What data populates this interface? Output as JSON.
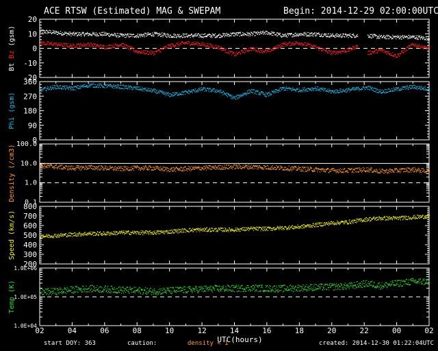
{
  "header": {
    "title": "ACE RTSW (Estimated) MAG & SWEPAM",
    "begin": "Begin: 2014-12-29 02:00:00UTC"
  },
  "footer": {
    "start_doy": "start DOY: 363",
    "caution": "caution:",
    "density_note": "density < 1",
    "created": "created: 2014-12-30 01:22:04UTC"
  },
  "colors": {
    "bt": "#ffffff",
    "bz": "#ff2020",
    "phi": "#20b8e8",
    "density": "#ff9a30",
    "speed": "#f0f020",
    "temp": "#30e030",
    "axes": "#ffffff",
    "background": "#000000"
  },
  "chart_data": [
    {
      "type": "scatter",
      "panel": "mag",
      "ylabel_parts": [
        "Bt",
        "Bz",
        "(gsm)"
      ],
      "ylim": [
        -20,
        20
      ],
      "yticks": [
        -20,
        -10,
        0,
        10,
        20
      ],
      "dashed_ref": 0,
      "series": [
        {
          "name": "Bt",
          "color": "#ffffff",
          "x": [
            2,
            3,
            4,
            5,
            6,
            7,
            8,
            9,
            10,
            11,
            12,
            13,
            14,
            15,
            16,
            17,
            18,
            19,
            20,
            21,
            21.6,
            22.2,
            23,
            24,
            25,
            26,
            26.6
          ],
          "y": [
            12,
            11,
            10,
            10,
            10,
            9,
            9,
            10,
            9,
            9,
            9,
            9,
            10,
            10,
            11,
            9,
            10,
            10,
            9,
            9,
            9,
            9,
            8,
            8,
            8,
            7,
            6
          ]
        },
        {
          "name": "Bz",
          "color": "#ff2020",
          "x": [
            2,
            3,
            4,
            5,
            6,
            7,
            8,
            9,
            10,
            11,
            12,
            13,
            14,
            15,
            16,
            17,
            18,
            19,
            20,
            21,
            21.6,
            22.2,
            23,
            24,
            25,
            26,
            26.6
          ],
          "y": [
            4,
            3,
            2,
            3,
            1,
            3,
            -2,
            -3,
            2,
            4,
            3,
            1,
            -4,
            0,
            -2,
            3,
            4,
            1,
            -3,
            -1,
            2,
            -3,
            -1,
            -5,
            3,
            0,
            4
          ]
        }
      ]
    },
    {
      "type": "scatter",
      "panel": "phi",
      "ylabel": "Phi (gsm)",
      "ylim": [
        0,
        360
      ],
      "yticks": [
        0,
        90,
        180,
        270,
        360
      ],
      "series": [
        {
          "name": "Phi",
          "color": "#20b8e8",
          "x": [
            2,
            3,
            4,
            5,
            6,
            7,
            8,
            9,
            10,
            11,
            12,
            13,
            14,
            15,
            16,
            17,
            18,
            19,
            20,
            21,
            22.2,
            23,
            24,
            25,
            26,
            26.6
          ],
          "y": [
            310,
            330,
            320,
            340,
            335,
            330,
            320,
            305,
            280,
            295,
            315,
            305,
            260,
            305,
            280,
            320,
            310,
            320,
            300,
            310,
            325,
            300,
            315,
            330,
            315,
            325
          ]
        }
      ]
    },
    {
      "type": "scatter",
      "panel": "density",
      "ylabel": "Density (/cm3)",
      "scale": "log",
      "ylim": [
        0.1,
        100
      ],
      "ytick_labels": [
        "0.1",
        "1.0",
        "10.0",
        "100.0"
      ],
      "dashed_ref": 1,
      "solid_ref": 10,
      "series": [
        {
          "name": "Density",
          "color": "#ff9a30",
          "x": [
            2,
            3,
            4,
            5,
            6,
            7,
            8,
            9,
            10,
            11,
            12,
            13,
            14,
            15,
            16,
            17,
            18,
            19,
            20,
            21,
            22.2,
            23,
            24,
            25,
            26,
            26.6
          ],
          "y": [
            8,
            7,
            6,
            6.5,
            6,
            5.5,
            6,
            6,
            5,
            5.5,
            6,
            6.5,
            7,
            7,
            6.5,
            6,
            5.5,
            5,
            4.5,
            4.5,
            5,
            4,
            4.5,
            5,
            4,
            3.5
          ]
        }
      ]
    },
    {
      "type": "scatter",
      "panel": "speed",
      "ylabel": "Speed (km/s)",
      "ylim": [
        200,
        800
      ],
      "yticks": [
        200,
        300,
        400,
        500,
        600,
        700,
        800
      ],
      "series": [
        {
          "name": "Speed",
          "color": "#f0f020",
          "x": [
            2,
            3,
            4,
            5,
            6,
            7,
            8,
            9,
            10,
            11,
            12,
            13,
            14,
            15,
            16,
            17,
            18,
            19,
            20,
            21,
            22.2,
            23,
            24,
            25,
            26,
            26.6
          ],
          "y": [
            490,
            500,
            510,
            520,
            520,
            530,
            530,
            530,
            540,
            555,
            560,
            560,
            560,
            570,
            570,
            580,
            590,
            610,
            630,
            640,
            670,
            680,
            680,
            690,
            700,
            710
          ]
        }
      ]
    },
    {
      "type": "scatter",
      "panel": "temp",
      "ylabel": "Temp (K)",
      "scale": "log",
      "ylim": [
        10000,
        1000000
      ],
      "ytick_labels": [
        "1.0E+04",
        "1.0E+05",
        "1.0E+06"
      ],
      "dashed_ref": 100000,
      "series": [
        {
          "name": "Temp",
          "color": "#30e030",
          "x": [
            2,
            3,
            4,
            5,
            6,
            7,
            8,
            9,
            10,
            11,
            12,
            13,
            14,
            15,
            16,
            17,
            18,
            19,
            20,
            21,
            22.2,
            23,
            24,
            25,
            26,
            26.6
          ],
          "y": [
            150000,
            160000,
            180000,
            200000,
            190000,
            180000,
            170000,
            160000,
            170000,
            180000,
            190000,
            200000,
            200000,
            210000,
            200000,
            200000,
            210000,
            220000,
            230000,
            240000,
            300000,
            250000,
            300000,
            350000,
            350000,
            400000
          ]
        }
      ]
    }
  ],
  "x_axis": {
    "label": "UTC(hours)",
    "tick_labels": [
      "02",
      "04",
      "06",
      "08",
      "10",
      "12",
      "14",
      "16",
      "18",
      "20",
      "22",
      "00",
      "02"
    ]
  }
}
